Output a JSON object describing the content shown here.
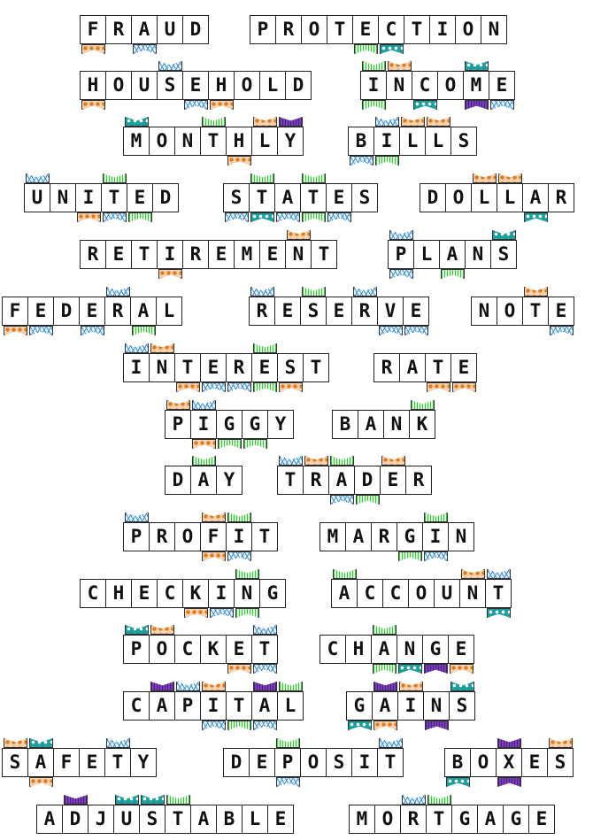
{
  "title": "",
  "pattern_colors": {
    "dots": "#e07a1a",
    "teal": "#1a9e9e",
    "blue": "#3a8fd8",
    "green": "#3cc23c",
    "purple": "#7a3fb8"
  },
  "rows": [
    {
      "words": [
        "FRAUD",
        "PROTECTION"
      ]
    },
    {
      "words": [
        "HOUSEHOLD",
        "INCOME"
      ]
    },
    {
      "words": [
        "MONTHLY",
        "BILLS"
      ]
    },
    {
      "words": [
        "UNITED",
        "STATES",
        "DOLLAR"
      ]
    },
    {
      "words": [
        "RETIREMENT",
        "PLANS"
      ]
    },
    {
      "words": [
        "FEDERAL",
        "RESERVE",
        "NOTE"
      ]
    },
    {
      "words": [
        "INTEREST",
        "RATE"
      ]
    },
    {
      "words": [
        "PIGGY",
        "BANK"
      ]
    },
    {
      "words": [
        "DAY",
        "TRADER"
      ]
    },
    {
      "words": [
        "PROFIT",
        "MARGIN"
      ]
    },
    {
      "words": [
        "CHECKING",
        "ACCOUNT"
      ]
    },
    {
      "words": [
        "POCKET",
        "CHANGE"
      ]
    },
    {
      "words": [
        "CAPITAL",
        "GAINS"
      ]
    },
    {
      "words": [
        "SAFETY",
        "DEPOSIT",
        "BOXES"
      ]
    },
    {
      "words": [
        "ADJUSTABLE",
        "MORTGAGE"
      ]
    }
  ]
}
